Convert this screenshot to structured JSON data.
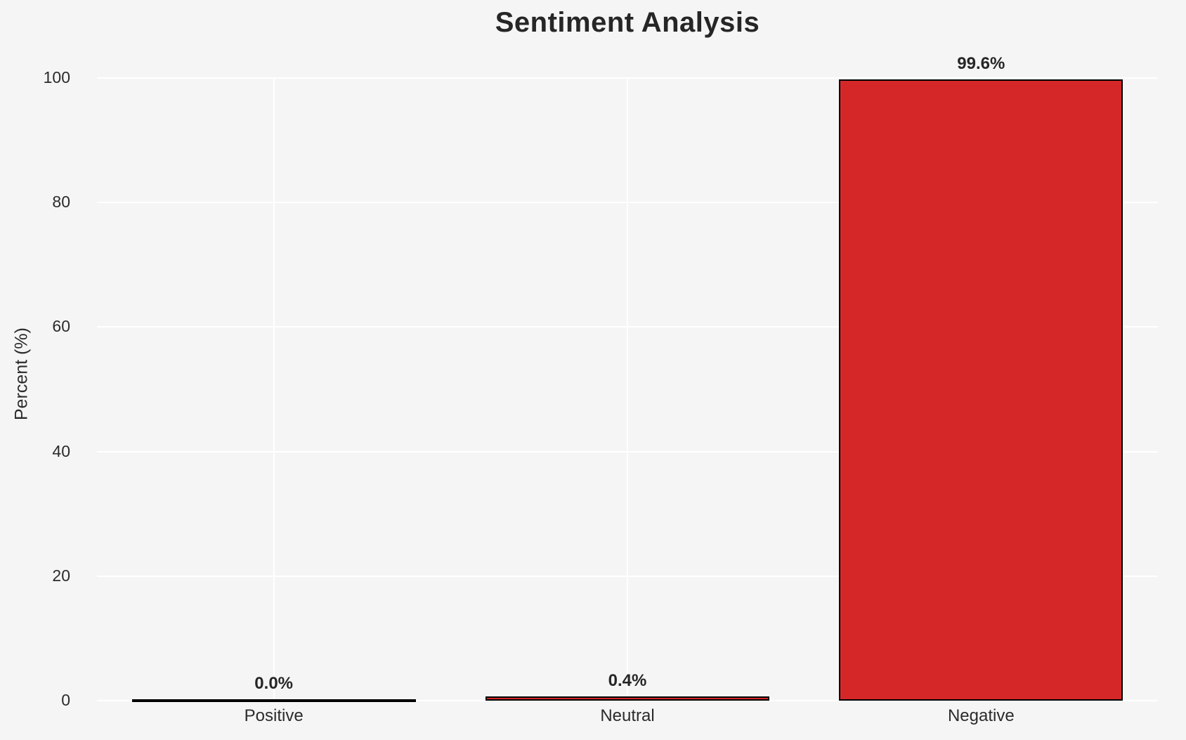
{
  "figure": {
    "background_color": "#f5f5f6",
    "gridline_color": "#ffffff",
    "text_color": "#2b2b2b",
    "title_color": "#262626"
  },
  "chart_data": {
    "type": "bar",
    "title": "Sentiment Analysis",
    "xlabel": "",
    "ylabel": "Percent (%)",
    "categories": [
      "Positive",
      "Neutral",
      "Negative"
    ],
    "values": [
      0.0,
      0.4,
      99.6
    ],
    "value_labels": [
      "0.0%",
      "0.4%",
      "99.6%"
    ],
    "yticks": [
      0,
      20,
      40,
      60,
      80,
      100
    ],
    "ylim": [
      0,
      100
    ],
    "grid": true,
    "legend": false,
    "bar_color": "#d62728",
    "bar_edge_color": "#000000"
  }
}
